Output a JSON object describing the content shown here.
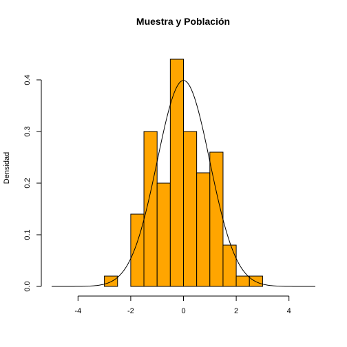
{
  "chart_data": {
    "type": "bar",
    "title": "Muestra y Población",
    "xlabel": "",
    "ylabel": "Densidad",
    "xlim": [
      -5,
      5
    ],
    "ylim": [
      0,
      0.44
    ],
    "x_ticks": [
      -4,
      -2,
      0,
      2,
      4
    ],
    "y_ticks": [
      0.0,
      0.1,
      0.2,
      0.3,
      0.4
    ],
    "grid": false,
    "bar_color": "#FFA500",
    "bins": [
      {
        "x0": -3.0,
        "x1": -2.5,
        "value": 0.02
      },
      {
        "x0": -2.5,
        "x1": -2.0,
        "value": 0.0
      },
      {
        "x0": -2.0,
        "x1": -1.5,
        "value": 0.14
      },
      {
        "x0": -1.5,
        "x1": -1.0,
        "value": 0.3
      },
      {
        "x0": -1.0,
        "x1": -0.5,
        "value": 0.2
      },
      {
        "x0": -0.5,
        "x1": 0.0,
        "value": 0.44
      },
      {
        "x0": 0.0,
        "x1": 0.5,
        "value": 0.3
      },
      {
        "x0": 0.5,
        "x1": 1.0,
        "value": 0.22
      },
      {
        "x0": 1.0,
        "x1": 1.5,
        "value": 0.26
      },
      {
        "x0": 1.5,
        "x1": 2.0,
        "value": 0.08
      },
      {
        "x0": 2.0,
        "x1": 2.5,
        "value": 0.02
      },
      {
        "x0": 2.5,
        "x1": 3.0,
        "value": 0.02
      }
    ],
    "overlay_curve": {
      "distribution": "normal",
      "mean": 0,
      "sd": 1,
      "x_range": [
        -5,
        5
      ]
    }
  }
}
